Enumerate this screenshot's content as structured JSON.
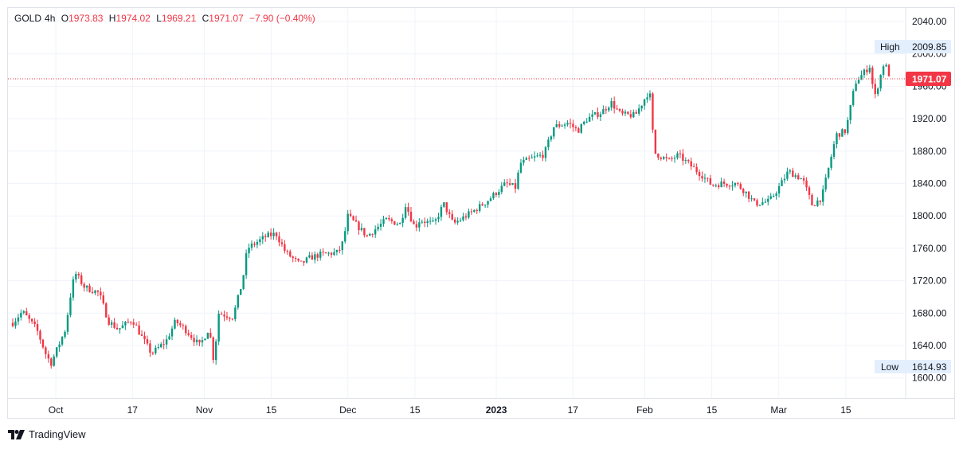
{
  "legend": {
    "symbol": "GOLD",
    "interval": "4h",
    "open_label": "O",
    "open": "1973.83",
    "high_label": "H",
    "high": "1974.02",
    "low_label": "L",
    "low": "1969.21",
    "close_label": "C",
    "close": "1971.07",
    "change": "−7.90 (−0.40%)"
  },
  "price_axis": {
    "ticks": [
      "2040.00",
      "2000.00",
      "1960.00",
      "1920.00",
      "1880.00",
      "1840.00",
      "1800.00",
      "1760.00",
      "1720.00",
      "1680.00",
      "1640.00",
      "1600.00"
    ],
    "last_price": "1971.07",
    "high_label": "High",
    "high_value": "2009.85",
    "low_label": "Low",
    "low_value": "1614.93"
  },
  "time_axis": {
    "labels": [
      "Oct",
      "17",
      "Nov",
      "15",
      "Dec",
      "15",
      "2023",
      "17",
      "Feb",
      "15",
      "Mar",
      "15"
    ]
  },
  "brand": {
    "name": "TradingView"
  },
  "colors": {
    "up": "#089981",
    "down": "#f23645",
    "grid": "#f0f3fa",
    "axis_text": "#131722",
    "badge": "#e3effd"
  },
  "chart_data": {
    "type": "candlestick",
    "symbol": "GOLD",
    "interval": "4h",
    "ylim": [
      1590,
      2060
    ],
    "grid": true,
    "x_ticks": [
      "Oct",
      "17",
      "Nov",
      "15",
      "Dec",
      "15",
      "2023",
      "17",
      "Feb",
      "15",
      "Mar",
      "15"
    ],
    "last_close": 1971.07,
    "period_high": 2009.85,
    "period_low": 1614.93,
    "path": [
      [
        "2022-09-22",
        1668
      ],
      [
        "2022-09-24",
        1682
      ],
      [
        "2022-09-27",
        1660
      ],
      [
        "2022-09-29",
        1628
      ],
      [
        "2022-09-30",
        1618
      ],
      [
        "2022-10-03",
        1660
      ],
      [
        "2022-10-04",
        1700
      ],
      [
        "2022-10-05",
        1730
      ],
      [
        "2022-10-07",
        1712
      ],
      [
        "2022-10-10",
        1705
      ],
      [
        "2022-10-12",
        1670
      ],
      [
        "2022-10-14",
        1660
      ],
      [
        "2022-10-17",
        1672
      ],
      [
        "2022-10-19",
        1650
      ],
      [
        "2022-10-21",
        1630
      ],
      [
        "2022-10-24",
        1645
      ],
      [
        "2022-10-26",
        1670
      ],
      [
        "2022-10-28",
        1660
      ],
      [
        "2022-10-31",
        1640
      ],
      [
        "2022-11-01",
        1650
      ],
      [
        "2022-11-02",
        1662
      ],
      [
        "2022-11-03",
        1620
      ],
      [
        "2022-11-04",
        1680
      ],
      [
        "2022-11-07",
        1675
      ],
      [
        "2022-11-09",
        1720
      ],
      [
        "2022-11-10",
        1760
      ],
      [
        "2022-11-14",
        1775
      ],
      [
        "2022-11-16",
        1778
      ],
      [
        "2022-11-18",
        1755
      ],
      [
        "2022-11-21",
        1740
      ],
      [
        "2022-11-23",
        1748
      ],
      [
        "2022-11-25",
        1752
      ],
      [
        "2022-11-29",
        1755
      ],
      [
        "2022-11-30",
        1768
      ],
      [
        "2022-12-01",
        1800
      ],
      [
        "2022-12-05",
        1775
      ],
      [
        "2022-12-07",
        1785
      ],
      [
        "2022-12-09",
        1795
      ],
      [
        "2022-12-12",
        1790
      ],
      [
        "2022-12-13",
        1815
      ],
      [
        "2022-12-15",
        1785
      ],
      [
        "2022-12-16",
        1795
      ],
      [
        "2022-12-19",
        1790
      ],
      [
        "2022-12-21",
        1815
      ],
      [
        "2022-12-23",
        1790
      ],
      [
        "2022-12-27",
        1805
      ],
      [
        "2022-12-30",
        1818
      ],
      [
        "2023-01-03",
        1840
      ],
      [
        "2023-01-05",
        1835
      ],
      [
        "2023-01-06",
        1865
      ],
      [
        "2023-01-09",
        1872
      ],
      [
        "2023-01-11",
        1876
      ],
      [
        "2023-01-13",
        1910
      ],
      [
        "2023-01-16",
        1915
      ],
      [
        "2023-01-18",
        1905
      ],
      [
        "2023-01-20",
        1920
      ],
      [
        "2023-01-23",
        1928
      ],
      [
        "2023-01-25",
        1940
      ],
      [
        "2023-01-27",
        1925
      ],
      [
        "2023-01-30",
        1924
      ],
      [
        "2023-02-01",
        1945
      ],
      [
        "2023-02-02",
        1955
      ],
      [
        "2023-02-03",
        1878
      ],
      [
        "2023-02-06",
        1868
      ],
      [
        "2023-02-08",
        1875
      ],
      [
        "2023-02-10",
        1865
      ],
      [
        "2023-02-13",
        1850
      ],
      [
        "2023-02-15",
        1838
      ],
      [
        "2023-02-17",
        1840
      ],
      [
        "2023-02-20",
        1840
      ],
      [
        "2023-02-22",
        1830
      ],
      [
        "2023-02-24",
        1815
      ],
      [
        "2023-02-27",
        1818
      ],
      [
        "2023-03-01",
        1835
      ],
      [
        "2023-03-03",
        1855
      ],
      [
        "2023-03-06",
        1845
      ],
      [
        "2023-03-08",
        1813
      ],
      [
        "2023-03-10",
        1823
      ],
      [
        "2023-03-13",
        1900
      ],
      [
        "2023-03-15",
        1905
      ],
      [
        "2023-03-17",
        1965
      ],
      [
        "2023-03-20",
        1985
      ],
      [
        "2023-03-21",
        1945
      ],
      [
        "2023-03-23",
        1990
      ],
      [
        "2023-03-24",
        1975
      ]
    ]
  }
}
